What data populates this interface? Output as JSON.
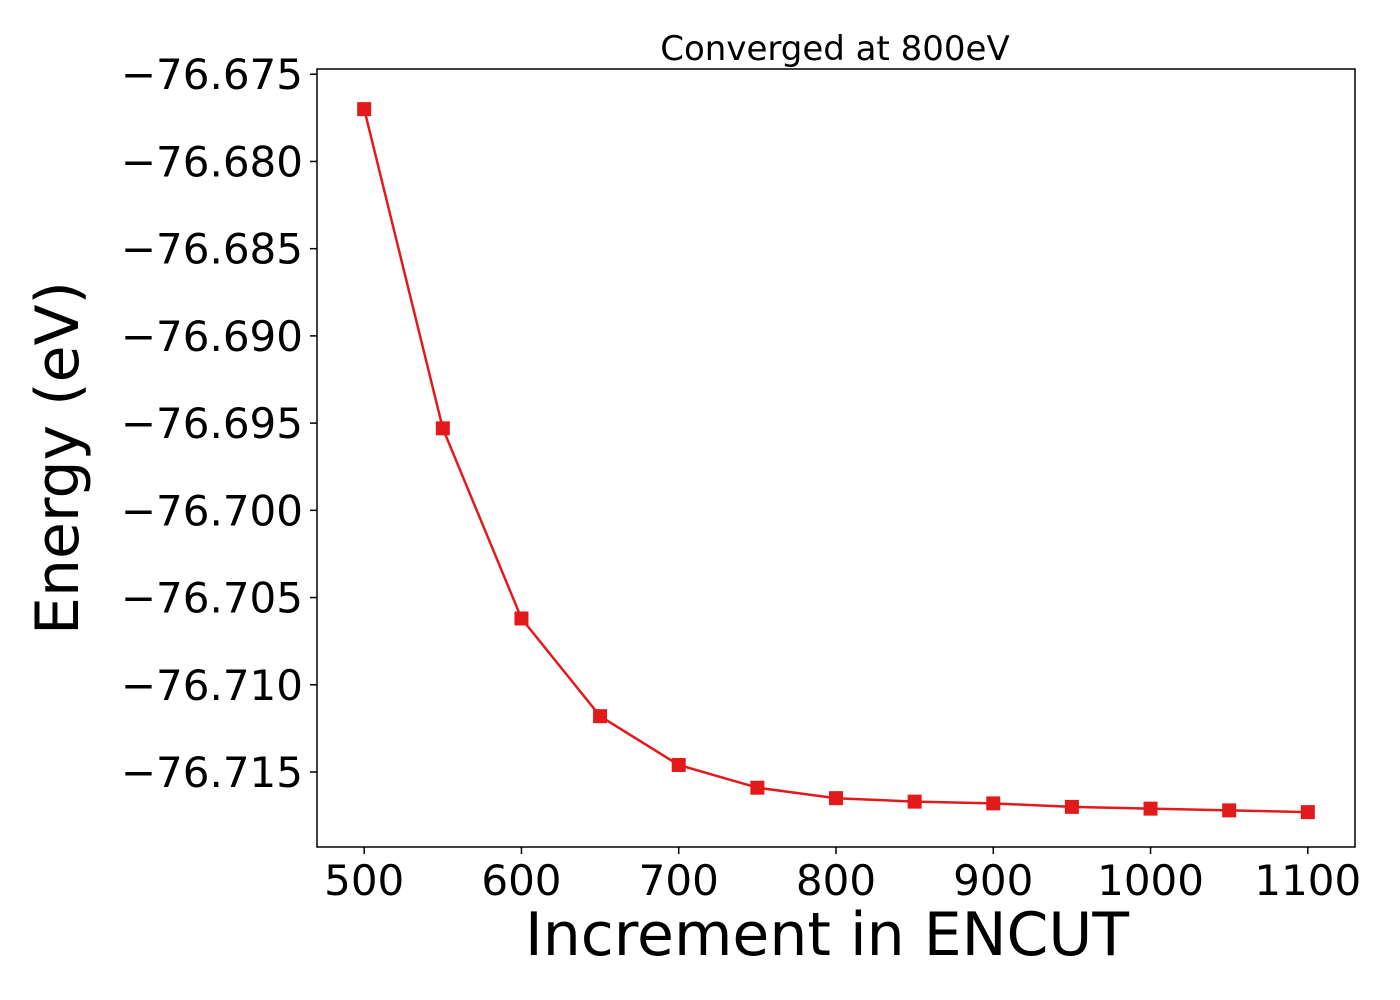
{
  "chart_data": {
    "type": "line",
    "title": "Converged at 800eV",
    "xlabel": "Increment in ENCUT",
    "ylabel": "Energy (eV)",
    "xlim": [
      470,
      1130
    ],
    "ylim": [
      -76.7193,
      -76.6747
    ],
    "xticks": [
      500,
      600,
      700,
      800,
      900,
      1000,
      1100
    ],
    "xtick_labels": [
      "500",
      "600",
      "700",
      "800",
      "900",
      "1000",
      "1100"
    ],
    "yticks": [
      -76.675,
      -76.68,
      -76.685,
      -76.69,
      -76.695,
      -76.7,
      -76.705,
      -76.71,
      -76.715
    ],
    "ytick_labels": [
      "−76.675",
      "−76.680",
      "−76.685",
      "−76.690",
      "−76.695",
      "−76.700",
      "−76.705",
      "−76.710",
      "−76.715"
    ],
    "grid": false,
    "legend": "none",
    "series": [
      {
        "color": "#e31a1c",
        "marker": "square",
        "x": [
          500,
          550,
          600,
          650,
          700,
          750,
          800,
          850,
          900,
          950,
          1000,
          1050,
          1100
        ],
        "y": [
          -76.677,
          -76.6953,
          -76.7062,
          -76.7118,
          -76.7146,
          -76.7159,
          -76.7165,
          -76.7167,
          -76.7168,
          -76.717,
          -76.7171,
          -76.7172,
          -76.7173
        ]
      }
    ]
  }
}
